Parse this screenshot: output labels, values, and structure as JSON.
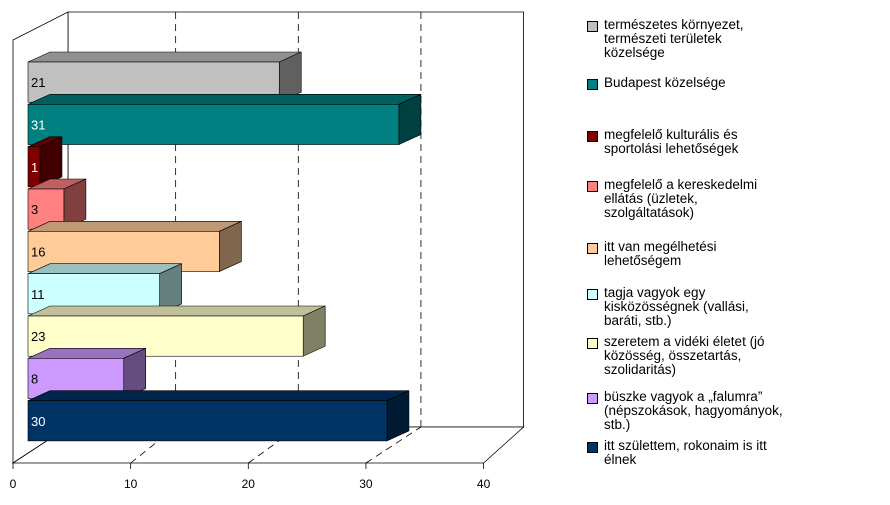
{
  "chart_data": {
    "type": "bar",
    "orientation": "horizontal",
    "style": "3d",
    "xlim": [
      0,
      40
    ],
    "ticks": [
      "0",
      "10",
      "20",
      "30",
      "40"
    ],
    "grid": "vertical dashed",
    "legend_position": "right",
    "bars": [
      {
        "label": "természetes környezet,\ntermészeti területek\nközelsége",
        "value": 21,
        "value_label": "21",
        "color": "#c0c0c0",
        "text_light": false
      },
      {
        "label": "Budapest közelsége",
        "value": 31,
        "value_label": "31",
        "color": "#008080",
        "text_light": true
      },
      {
        "label": "megfelelő kulturális és\nsportolási lehetőségek",
        "value": 1,
        "value_label": "1",
        "color": "#800000",
        "text_light": true
      },
      {
        "label": "megfelelő a kereskedelmi\nellátás (üzletek,\nszolgáltatások)",
        "value": 3,
        "value_label": "3",
        "color": "#ff8080",
        "text_light": false
      },
      {
        "label": "itt van megélhetési\nlehetőségem",
        "value": 16,
        "value_label": "16",
        "color": "#ffcc99",
        "text_light": false
      },
      {
        "label": "tagja vagyok egy\nkisközösségnek (vallási,\nbaráti, stb.)",
        "value": 11,
        "value_label": "11",
        "color": "#ccffff",
        "text_light": false
      },
      {
        "label": "szeretem a vidéki életet (jó\nközösség, összetartás,\nszolidaritás)",
        "value": 23,
        "value_label": "23",
        "color": "#ffffcc",
        "text_light": false
      },
      {
        "label": "büszke vagyok a „falumra”\n(népszokások, hagyományok,\nstb.)",
        "value": 8,
        "value_label": "8",
        "color": "#cc99ff",
        "text_light": false
      },
      {
        "label": "itt születtem, rokonaim is itt\nélnek",
        "value": 30,
        "value_label": "30",
        "color": "#003366",
        "text_light": true
      }
    ]
  }
}
